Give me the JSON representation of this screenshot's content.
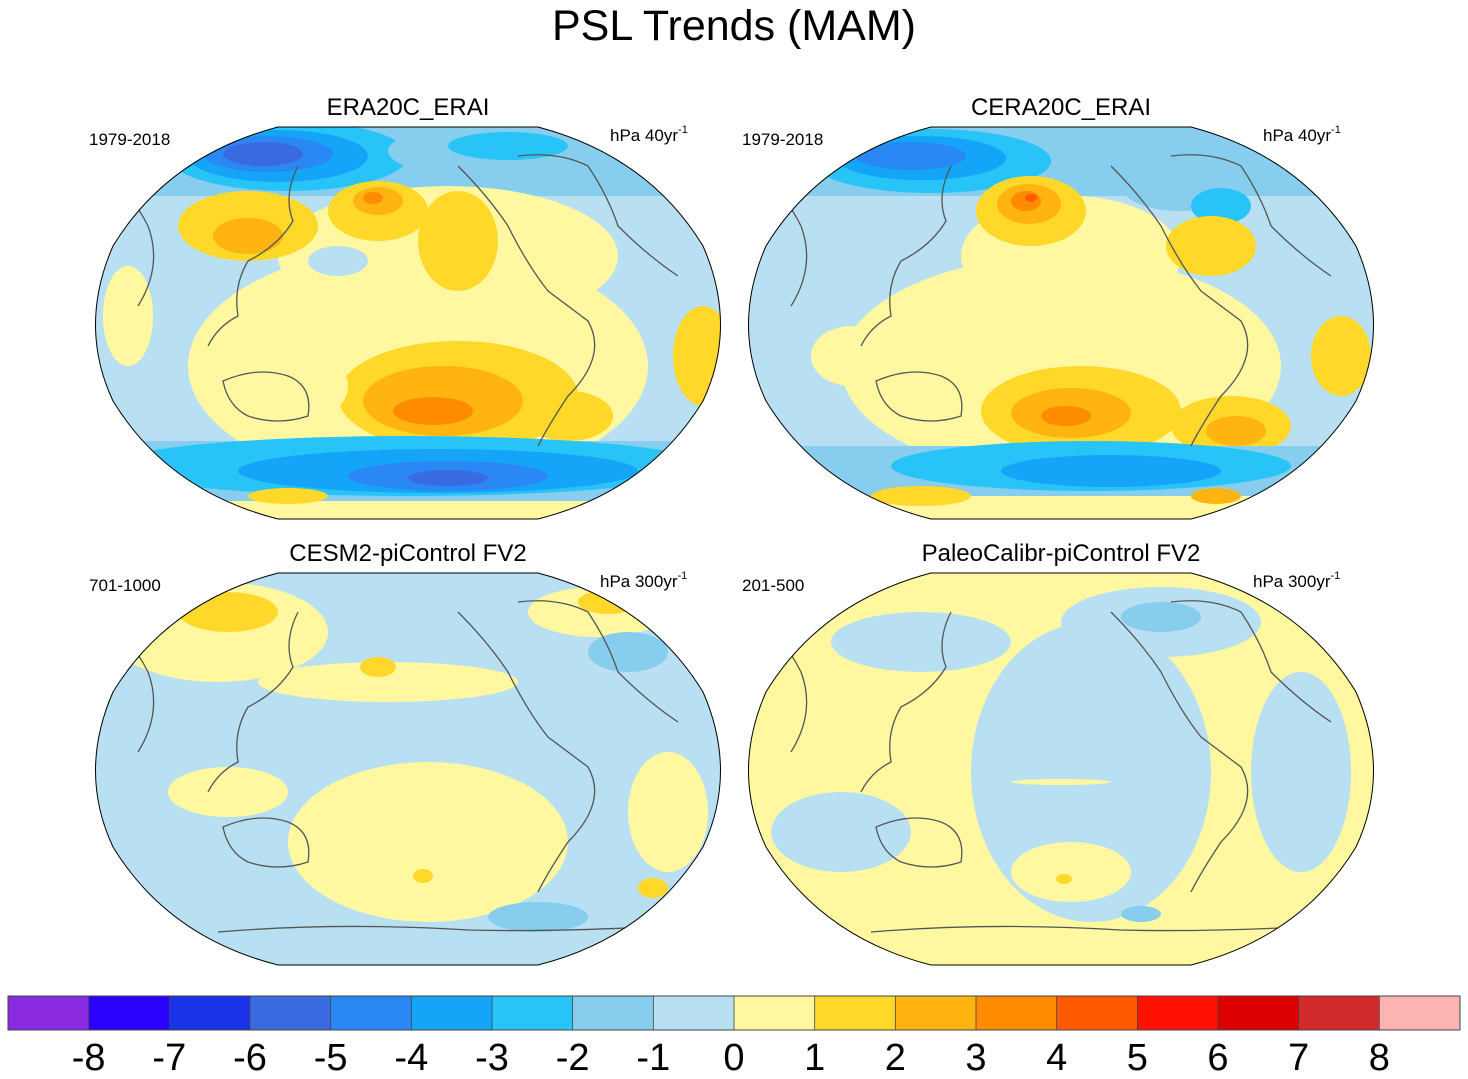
{
  "title": "PSL Trends (MAM)",
  "panels": [
    {
      "name": "ERA20C_ERAI",
      "period": "1979-2018",
      "unit_main": "hPa 40yr",
      "unit_sup": "-1"
    },
    {
      "name": "CERA20C_ERAI",
      "period": "1979-2018",
      "unit_main": "hPa 40yr",
      "unit_sup": "-1"
    },
    {
      "name": "CESM2-piControl FV2",
      "period": "701-1000",
      "unit_main": "hPa 300yr",
      "unit_sup": "-1"
    },
    {
      "name": "PaleoCalibr-piControl FV2",
      "period": "201-500",
      "unit_main": "hPa 300yr",
      "unit_sup": "-1"
    }
  ],
  "chart_data": {
    "type": "heatmap",
    "title": "PSL Trends (MAM)",
    "projection": "Robinson (Pacific-centred world map)",
    "variable": "sea level pressure trend",
    "colorbar": {
      "tick_labels": [
        "-8",
        "-7",
        "-6",
        "-5",
        "-4",
        "-3",
        "-2",
        "-1",
        "0",
        "1",
        "2",
        "3",
        "4",
        "5",
        "6",
        "7",
        "8"
      ],
      "tick_values": [
        -8,
        -7,
        -6,
        -5,
        -4,
        -3,
        -2,
        -1,
        0,
        1,
        2,
        3,
        4,
        5,
        6,
        7,
        8
      ],
      "colors": [
        "#8a2be2",
        "#2a00ff",
        "#1a33e8",
        "#3a6ae0",
        "#2a88f5",
        "#14a5f8",
        "#28c4f8",
        "#86cdee",
        "#b8e0f2",
        "#fff8a0",
        "#ffd82a",
        "#ffb410",
        "#ff8c00",
        "#ff5a00",
        "#ff1000",
        "#dd0000",
        "#d22a2a",
        "#ffb4b4"
      ]
    },
    "panels": [
      {
        "name": "ERA20C_ERAI",
        "period": "1979-2018",
        "units": "hPa 40yr-1",
        "approx_range": [
          -7,
          4
        ]
      },
      {
        "name": "CERA20C_ERAI",
        "period": "1979-2018",
        "units": "hPa 40yr-1",
        "approx_range": [
          -6,
          5
        ]
      },
      {
        "name": "CESM2-piControl FV2",
        "period": "701-1000",
        "units": "hPa 300yr-1",
        "approx_range": [
          -2,
          2
        ]
      },
      {
        "name": "PaleoCalibr-piControl FV2",
        "period": "201-500",
        "units": "hPa 300yr-1",
        "approx_range": [
          -2,
          1
        ]
      }
    ]
  }
}
